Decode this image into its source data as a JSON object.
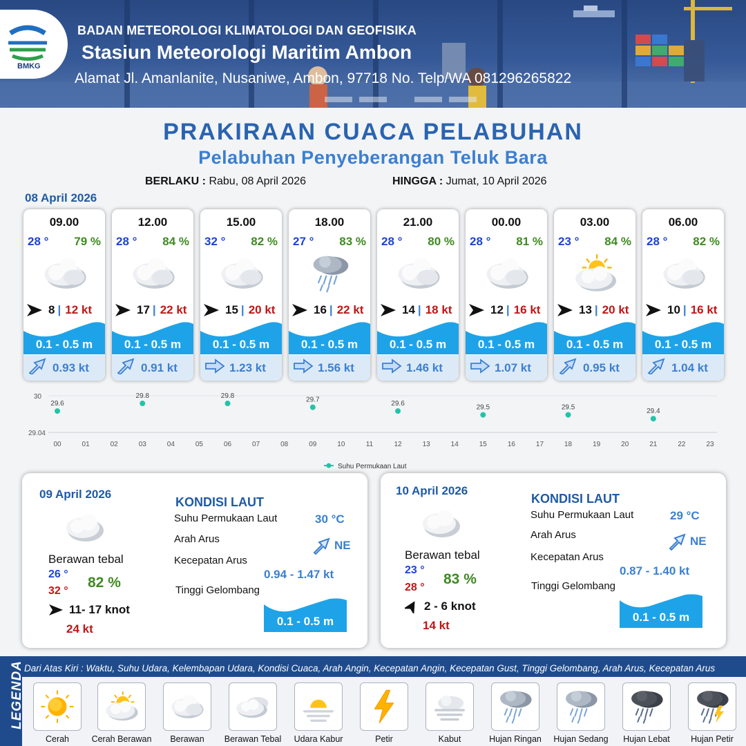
{
  "header": {
    "logo_text": "BMKG",
    "organization": "BADAN METEOROLOGI KLIMATOLOGI DAN GEOFISIKA",
    "station": "Stasiun Meteorologi Maritim Ambon",
    "address": "Alamat Jl. Amanlanite, Nusaniwe, Ambon, 97718   No. Telp/WA  081296265822"
  },
  "title": "PRAKIRAAN CUACA PELABUHAN",
  "subtitle": "Pelabuhan Penyeberangan Teluk Bara",
  "validity": {
    "from_label": "BERLAKU :",
    "from_value": "Rabu, 08 April 2026",
    "to_label": "HINGGA :",
    "to_value": "Jumat, 10 April 2026"
  },
  "day0": {
    "date": "08 April 2026",
    "cards": [
      {
        "time": "09.00",
        "temp": "28 °",
        "hum": "79 %",
        "icon": "berawan-tebal",
        "wind": "8",
        "gust": "12 kt",
        "wave": "0.1 - 0.5 m",
        "current": "0.93 kt",
        "current_dir": "NE"
      },
      {
        "time": "12.00",
        "temp": "28 °",
        "hum": "84 %",
        "icon": "berawan-tebal",
        "wind": "17",
        "gust": "22 kt",
        "wave": "0.1 - 0.5 m",
        "current": "0.91 kt",
        "current_dir": "NE"
      },
      {
        "time": "15.00",
        "temp": "32 °",
        "hum": "82 %",
        "icon": "berawan-tebal",
        "wind": "15",
        "gust": "20 kt",
        "wave": "0.1 - 0.5 m",
        "current": "1.23 kt",
        "current_dir": "E"
      },
      {
        "time": "18.00",
        "temp": "27 °",
        "hum": "83 %",
        "icon": "hujan-ringan",
        "wind": "16",
        "gust": "22 kt",
        "wave": "0.1 - 0.5 m",
        "current": "1.56 kt",
        "current_dir": "E"
      },
      {
        "time": "21.00",
        "temp": "28 °",
        "hum": "80 %",
        "icon": "berawan-tebal",
        "wind": "14",
        "gust": "18 kt",
        "wave": "0.1 - 0.5 m",
        "current": "1.46 kt",
        "current_dir": "E"
      },
      {
        "time": "00.00",
        "temp": "28 °",
        "hum": "81 %",
        "icon": "berawan-tebal",
        "wind": "12",
        "gust": "16 kt",
        "wave": "0.1 - 0.5 m",
        "current": "1.07 kt",
        "current_dir": "E"
      },
      {
        "time": "03.00",
        "temp": "23 °",
        "hum": "84 %",
        "icon": "cerah-berawan",
        "wind": "13",
        "gust": "20 kt",
        "wave": "0.1 - 0.5 m",
        "current": "0.95 kt",
        "current_dir": "NE"
      },
      {
        "time": "06.00",
        "temp": "28 °",
        "hum": "82 %",
        "icon": "berawan-tebal",
        "wind": "10",
        "gust": "16 kt",
        "wave": "0.1 - 0.5 m",
        "current": "1.04 kt",
        "current_dir": "NE"
      }
    ]
  },
  "chart_data": {
    "type": "scatter",
    "series": [
      {
        "name": "Suhu Permukaan Laut",
        "x": [
          0,
          3,
          6,
          9,
          12,
          15,
          18,
          21
        ],
        "values": [
          29.6,
          29.8,
          29.8,
          29.7,
          29.6,
          29.5,
          29.5,
          29.4
        ],
        "color": "#22c4a8"
      }
    ],
    "x_ticks": [
      "00",
      "01",
      "02",
      "03",
      "04",
      "05",
      "06",
      "07",
      "08",
      "09",
      "10",
      "11",
      "12",
      "13",
      "14",
      "15",
      "16",
      "17",
      "18",
      "19",
      "20",
      "21",
      "22",
      "23"
    ],
    "y_ticks": [
      "30",
      "29.04"
    ],
    "ylim": [
      29.04,
      30
    ],
    "xlim": [
      0,
      23
    ],
    "data_labels": [
      "29.6",
      "29.8",
      "29.8",
      "29.7",
      "29.6",
      "29.5",
      "29.5",
      "29.4"
    ],
    "legend_label": "Suhu Permukaan Laut",
    "legend_position": "bottom-center",
    "grid": true
  },
  "day1": {
    "date": "09 April 2026",
    "condition": "Berawan tebal",
    "tmin": "26 °",
    "tmax": "32 °",
    "hum": "82 %",
    "wind": "11- 17 knot",
    "gust": "24 kt",
    "kondisi_title": "KONDISI LAUT",
    "sst_label": "Suhu Permukaan Laut",
    "sst_value": "30 °C",
    "dir_label": "Arah Arus",
    "dir_value": "NE",
    "speed_label": "Kecepatan Arus",
    "speed_value": "0.94 - 1.47 kt",
    "wave_label": "Tinggi Gelombang",
    "wave_value": "0.1 - 0.5 m"
  },
  "day2": {
    "date": "10 April 2026",
    "condition": "Berawan tebal",
    "tmin": "23 °",
    "tmax": "28 °",
    "hum": "83 %",
    "wind": "2  - 6 knot",
    "gust": "14 kt",
    "kondisi_title": "KONDISI LAUT",
    "sst_label": "Suhu Permukaan Laut",
    "sst_value": "29 °C",
    "dir_label": "Arah Arus",
    "dir_value": "NE",
    "speed_label": "Kecepatan Arus",
    "speed_value": "0.87 - 1.40 kt",
    "wave_label": "Tinggi Gelombang",
    "wave_value": "0.1 - 0.5 m"
  },
  "legend": {
    "title": "LEGENDA",
    "description": "Dari Atas Kiri : Waktu, Suhu Udara, Kelembapan Udara, Kondisi Cuaca, Arah Angin, Kecepatan Angin, Kecepatan Gust, Tinggi Gelombang, Arah Arus, Kecepatan Arus",
    "items": [
      {
        "label": "Cerah",
        "icon": "sun-icon"
      },
      {
        "label": "Cerah Berawan",
        "icon": "sun-cloud-icon"
      },
      {
        "label": "Berawan",
        "icon": "cloud-icon"
      },
      {
        "label": "Berawan Tebal",
        "icon": "thick-cloud-icon"
      },
      {
        "label": "Udara Kabur",
        "icon": "haze-icon"
      },
      {
        "label": "Petir",
        "icon": "lightning-icon"
      },
      {
        "label": "Kabut",
        "icon": "fog-icon"
      },
      {
        "label": "Hujan Ringan",
        "icon": "light-rain-icon"
      },
      {
        "label": "Hujan Sedang",
        "icon": "moderate-rain-icon"
      },
      {
        "label": "Hujan Lebat",
        "icon": "heavy-rain-icon"
      },
      {
        "label": "Hujan Petir",
        "icon": "thunderstorm-icon"
      }
    ]
  },
  "colors": {
    "title": "#2a64b0",
    "temp": "#1b44d0",
    "humidity": "#3f8a22",
    "gust": "#c01515",
    "wave": "#1ea3e8"
  }
}
